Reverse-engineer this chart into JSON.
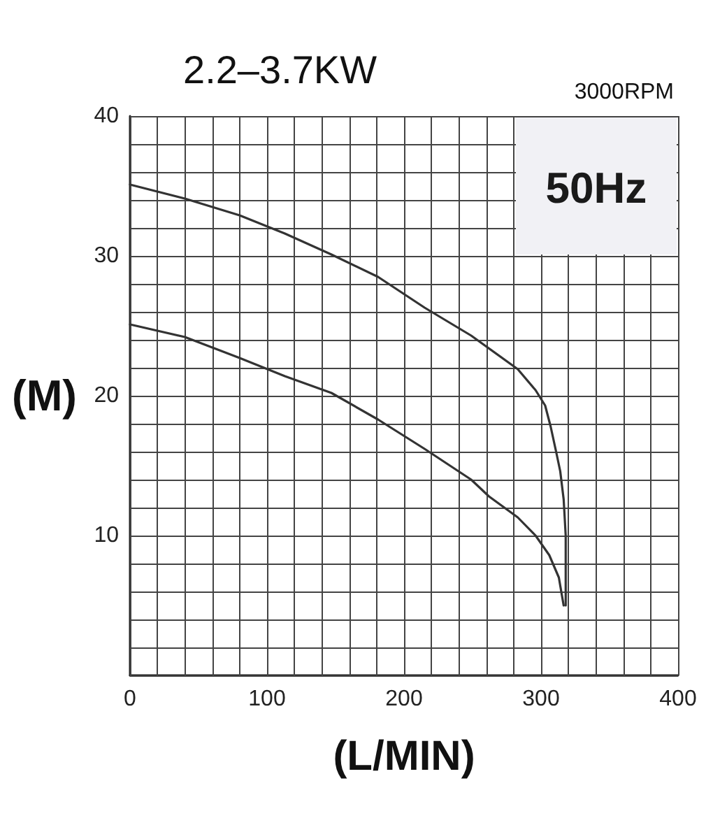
{
  "chart_data": {
    "type": "line",
    "title": "2.2–3.7KW",
    "xlabel": "(L/MIN)",
    "ylabel": "(M)",
    "annotations": [
      "3000RPM",
      "50Hz"
    ],
    "series": [
      {
        "color": "#333333",
        "x": [
          0,
          40,
          80,
          113,
          147,
          181,
          215,
          249,
          283,
          296,
          303,
          307,
          311,
          314,
          316.5,
          318,
          318
        ],
        "values": [
          35.1,
          34.1,
          32.9,
          31.6,
          30.1,
          28.5,
          26.3,
          24.3,
          21.9,
          20.4,
          19.3,
          17.8,
          16,
          14.6,
          12.6,
          10,
          5
        ]
      },
      {
        "color": "#333333",
        "x": [
          0,
          40,
          80,
          113,
          147,
          181,
          215,
          249,
          262,
          283,
          296,
          306,
          313,
          316.5
        ],
        "values": [
          25.1,
          24.2,
          22.7,
          21.4,
          20.2,
          18.3,
          16.2,
          14,
          12.8,
          11.3,
          10,
          8.6,
          7,
          5
        ]
      }
    ],
    "xlim": [
      0,
      400
    ],
    "ylim": [
      0,
      40
    ],
    "xticks": [
      0,
      {
        "value": 20,
        "label": null
      },
      {
        "value": 40,
        "label": null
      },
      {
        "value": 60,
        "label": null
      },
      {
        "value": 80,
        "label": null
      },
      100,
      {
        "value": 120,
        "label": null
      },
      {
        "value": 140,
        "label": null
      },
      {
        "value": 160,
        "label": null
      },
      {
        "value": 180,
        "label": null
      },
      200,
      {
        "value": 220,
        "label": null
      },
      {
        "value": 240,
        "label": null
      },
      {
        "value": 260,
        "label": null
      },
      {
        "value": 280,
        "label": null
      },
      300,
      {
        "value": 320,
        "label": null
      },
      {
        "value": 340,
        "label": null
      },
      {
        "value": 360,
        "label": null
      },
      {
        "value": 380,
        "label": null
      },
      400
    ],
    "yticks": [
      {
        "value": 0,
        "label": null
      },
      {
        "value": 2,
        "label": null
      },
      {
        "value": 4,
        "label": null
      },
      {
        "value": 6,
        "label": null
      },
      {
        "value": 8,
        "label": null
      },
      10,
      {
        "value": 12,
        "label": null
      },
      {
        "value": 14,
        "label": null
      },
      {
        "value": 16,
        "label": null
      },
      {
        "value": 18,
        "label": null
      },
      20,
      {
        "value": 22,
        "label": null
      },
      {
        "value": 24,
        "label": null
      },
      {
        "value": 26,
        "label": null
      },
      {
        "value": 28,
        "label": null
      },
      30,
      {
        "value": 32,
        "label": null
      },
      {
        "value": 34,
        "label": null
      },
      {
        "value": 36,
        "label": null
      },
      {
        "value": 38,
        "label": null
      },
      40
    ],
    "grid": true
  }
}
